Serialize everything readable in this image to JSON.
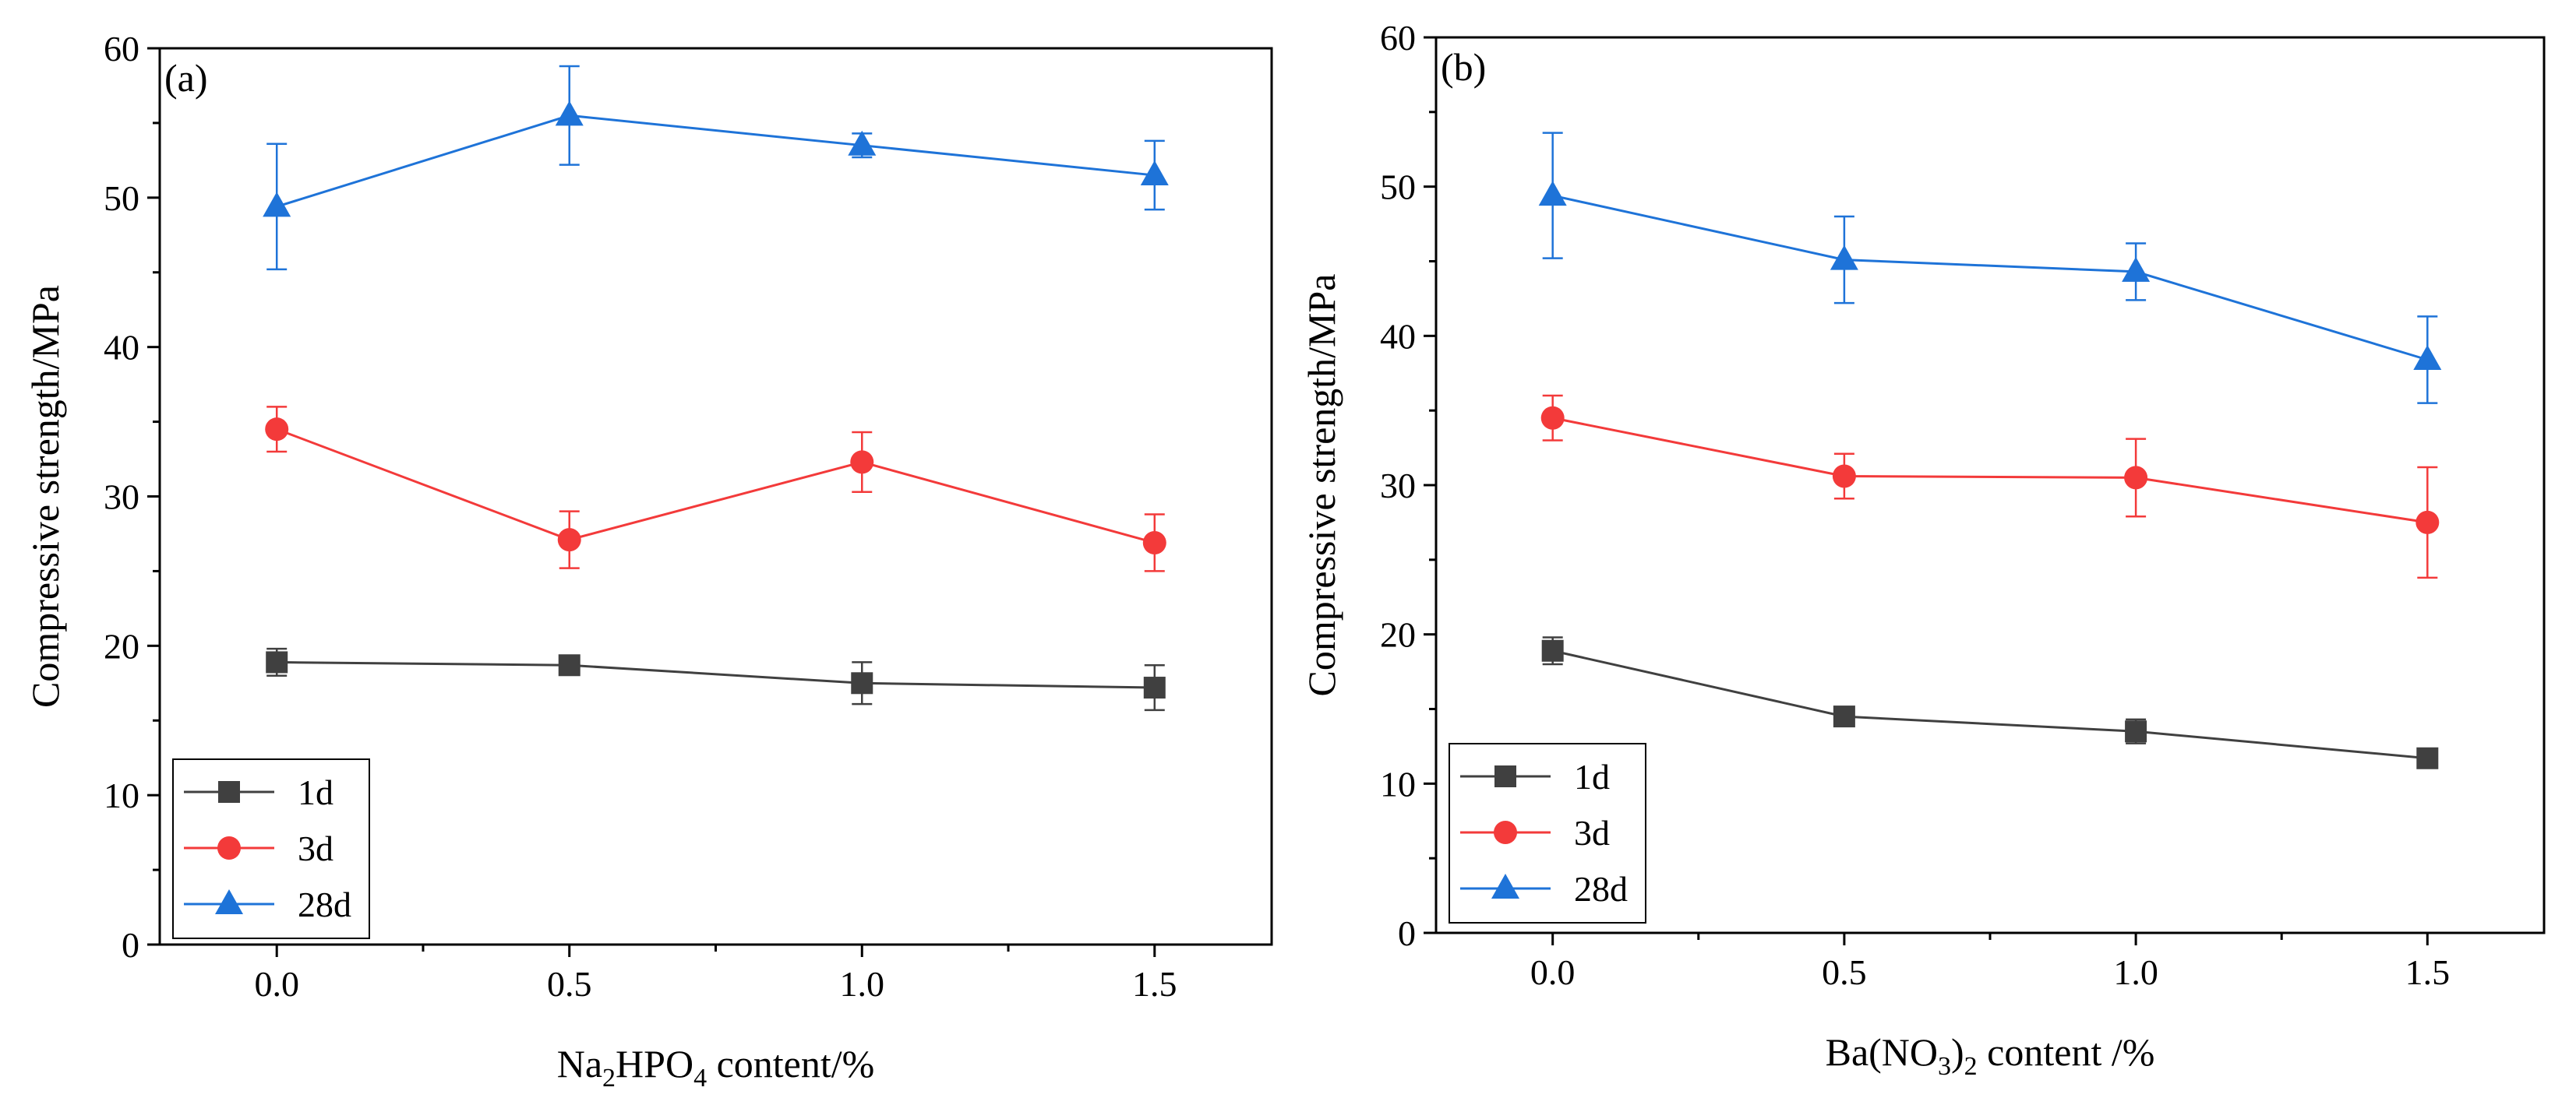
{
  "chart_data": [
    {
      "type": "line",
      "panel_label": "(a)",
      "xlabel": {
        "main": "Na",
        "sub1": "2",
        "mid": "HPO",
        "sub2": "4",
        "tail": " content/%"
      },
      "ylabel": "Compressive strength/MPa",
      "x": [
        0.0,
        0.5,
        1.0,
        1.5
      ],
      "xticks": [
        "0.0",
        "0.5",
        "1.0",
        "1.5"
      ],
      "yticks": [
        "0",
        "10",
        "20",
        "30",
        "40",
        "50",
        "60"
      ],
      "xlim": [
        -0.2,
        1.7
      ],
      "ylim": [
        0,
        60
      ],
      "legend_position": "bottom-left",
      "series": [
        {
          "name": "1d",
          "marker": "square",
          "color": "#404040",
          "values": [
            18.9,
            18.7,
            17.5,
            17.2
          ],
          "errors": [
            0.9,
            0.6,
            1.4,
            1.5
          ]
        },
        {
          "name": "3d",
          "marker": "circle",
          "color": "#f33a3a",
          "values": [
            34.5,
            27.1,
            32.3,
            26.9
          ],
          "errors": [
            1.5,
            1.9,
            2.0,
            1.9
          ]
        },
        {
          "name": "28d",
          "marker": "triangle",
          "color": "#1e73d8",
          "values": [
            49.4,
            55.5,
            53.5,
            51.5
          ],
          "errors": [
            4.2,
            3.3,
            0.8,
            2.3
          ]
        }
      ]
    },
    {
      "type": "line",
      "panel_label": "(b)",
      "xlabel": {
        "main": "Ba(NO",
        "sub1": "3",
        "mid": ")",
        "sub2": "2",
        "tail": " content /%"
      },
      "ylabel": "Compressive strength/MPa",
      "x": [
        0.0,
        0.5,
        1.0,
        1.5
      ],
      "xticks": [
        "0.0",
        "0.5",
        "1.0",
        "1.5"
      ],
      "yticks": [
        "0",
        "10",
        "20",
        "30",
        "40",
        "50",
        "60"
      ],
      "xlim": [
        -0.2,
        1.7
      ],
      "ylim": [
        0,
        60
      ],
      "legend_position": "bottom-left",
      "series": [
        {
          "name": "1d",
          "marker": "square",
          "color": "#404040",
          "values": [
            18.9,
            14.5,
            13.5,
            11.7
          ],
          "errors": [
            0.9,
            0.5,
            0.8,
            0.4
          ]
        },
        {
          "name": "3d",
          "marker": "circle",
          "color": "#f33a3a",
          "values": [
            34.5,
            30.6,
            30.5,
            27.5
          ],
          "errors": [
            1.5,
            1.5,
            2.6,
            3.7
          ]
        },
        {
          "name": "28d",
          "marker": "triangle",
          "color": "#1e73d8",
          "values": [
            49.4,
            45.1,
            44.3,
            38.4
          ],
          "errors": [
            4.2,
            2.9,
            1.9,
            2.9
          ]
        }
      ]
    }
  ]
}
